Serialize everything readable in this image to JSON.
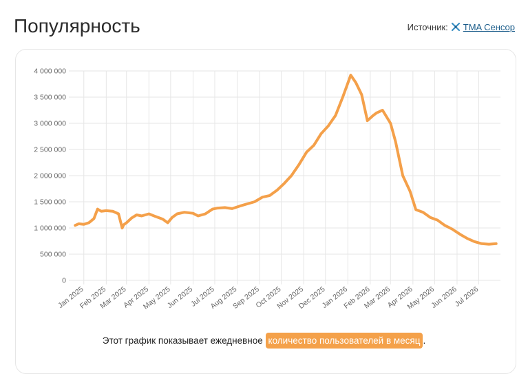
{
  "header": {
    "title": "Популярность",
    "source_label": "Источник:",
    "source_link": "TMA Сенсор"
  },
  "caption": {
    "prefix": "Этот график показывает ежедневное ",
    "highlight": "количество пользователей в месяц",
    "suffix": "."
  },
  "colors": {
    "line": "#f4a04a",
    "grid": "#e6e6e6",
    "highlight": "#f4a14a",
    "link": "#1a5c8a"
  },
  "chart_data": {
    "type": "line",
    "title": "",
    "xlabel": "",
    "ylabel": "",
    "ylim": [
      0,
      4000000
    ],
    "y_ticks": [
      0,
      500000,
      1000000,
      1500000,
      2000000,
      2500000,
      3000000,
      3500000,
      4000000
    ],
    "y_tick_labels": [
      "0",
      "500 000",
      "1 000 000",
      "1 500 000",
      "2 000 000",
      "2 500 000",
      "3 000 000",
      "3 500 000",
      "4 000 000"
    ],
    "x_ticks": [
      "2025-01",
      "2025-02",
      "2025-03",
      "2025-04",
      "2025-05",
      "2025-06",
      "2025-07",
      "2025-08",
      "2025-09",
      "2025-10",
      "2025-11",
      "2025-12",
      "2026-01",
      "2026-02",
      "2026-03",
      "2026-04",
      "2026-05",
      "2026-06",
      "2026-07"
    ],
    "x_tick_labels": [
      "Jan 2025",
      "Feb 2025",
      "Mar 2025",
      "Apr 2025",
      "May 2025",
      "Jun 2025",
      "Jul 2025",
      "Aug 2025",
      "Sep 2025",
      "Oct 2025",
      "Nov 2025",
      "Dec 2025",
      "Jan 2026",
      "Feb 2026",
      "Mar 2026",
      "Apr 2026",
      "May 2026",
      "Jun 2026",
      "Jul 2026"
    ],
    "grid": true,
    "legend": "none",
    "series": [
      {
        "x": [
          "2024-12-20",
          "2024-12-25",
          "2025-01-01",
          "2025-01-08",
          "2025-01-15",
          "2025-01-20",
          "2025-01-25",
          "2025-02-01",
          "2025-02-10",
          "2025-02-18",
          "2025-02-23",
          "2025-02-25",
          "2025-03-01",
          "2025-03-08",
          "2025-03-15",
          "2025-03-22",
          "2025-04-01",
          "2025-04-10",
          "2025-04-20",
          "2025-04-27",
          "2025-05-03",
          "2025-05-10",
          "2025-05-20",
          "2025-06-01",
          "2025-06-08",
          "2025-06-18",
          "2025-06-28",
          "2025-07-05",
          "2025-07-15",
          "2025-07-25",
          "2025-08-05",
          "2025-08-15",
          "2025-08-25",
          "2025-09-05",
          "2025-09-15",
          "2025-09-25",
          "2025-10-05",
          "2025-10-15",
          "2025-10-25",
          "2025-11-05",
          "2025-11-15",
          "2025-11-25",
          "2025-12-05",
          "2025-12-15",
          "2025-12-25",
          "2026-01-05",
          "2026-01-12",
          "2026-01-20",
          "2026-01-28",
          "2026-02-05",
          "2026-02-10",
          "2026-02-18",
          "2026-03-01",
          "2026-03-08",
          "2026-03-18",
          "2026-03-28",
          "2026-04-05",
          "2026-04-15",
          "2026-04-25",
          "2026-05-05",
          "2026-05-15",
          "2026-05-25",
          "2026-06-05",
          "2026-06-15",
          "2026-06-25",
          "2026-07-05",
          "2026-07-15",
          "2026-07-25"
        ],
        "values": [
          1050000,
          1080000,
          1070000,
          1100000,
          1180000,
          1360000,
          1320000,
          1330000,
          1320000,
          1270000,
          1000000,
          1060000,
          1100000,
          1190000,
          1250000,
          1230000,
          1270000,
          1220000,
          1170000,
          1100000,
          1200000,
          1270000,
          1300000,
          1280000,
          1230000,
          1270000,
          1360000,
          1380000,
          1390000,
          1370000,
          1420000,
          1460000,
          1500000,
          1590000,
          1620000,
          1720000,
          1850000,
          2000000,
          2200000,
          2450000,
          2580000,
          2800000,
          2950000,
          3150000,
          3500000,
          3920000,
          3780000,
          3550000,
          3050000,
          3150000,
          3200000,
          3250000,
          3000000,
          2650000,
          2000000,
          1700000,
          1350000,
          1300000,
          1200000,
          1150000,
          1050000,
          980000,
          880000,
          800000,
          740000,
          700000,
          690000,
          700000
        ]
      }
    ]
  }
}
